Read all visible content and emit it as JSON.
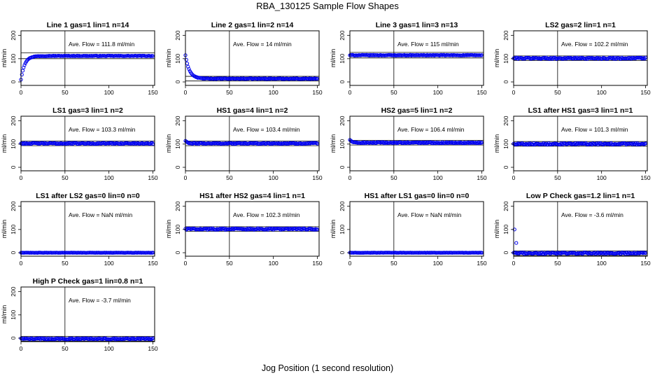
{
  "figure": {
    "title": "RBA_130125  Sample Flow Shapes",
    "xlabel": "Jog Position (1 second resolution)"
  },
  "colors": {
    "points": "#0000ee",
    "axis": "#000000"
  },
  "chart_data": [
    {
      "type": "scatter",
      "title": "Line 1 gas=1 lin=1 n=14",
      "flow_text": "Ave. Flow =  111.8  ml/min",
      "shape": "rise",
      "level": 112,
      "start": 10,
      "noise": 1.2,
      "hlines": [
        100,
        125
      ],
      "ylabel": "ml/min",
      "xticks": [
        0,
        50,
        100,
        150
      ],
      "yticks": [
        0,
        100,
        200
      ],
      "xlim": [
        0,
        152
      ],
      "ylim": [
        -15,
        220
      ]
    },
    {
      "type": "scatter",
      "title": "Line 2 gas=1 lin=2 n=14",
      "flow_text": "Ave. Flow =  14  ml/min",
      "shape": "decay",
      "level": 14,
      "start": 115,
      "noise": 1.5,
      "hlines": [
        4,
        24
      ],
      "ylabel": "ml/min",
      "xticks": [
        0,
        50,
        100,
        150
      ],
      "yticks": [
        0,
        100,
        200
      ],
      "xlim": [
        0,
        152
      ],
      "ylim": [
        -15,
        220
      ]
    },
    {
      "type": "scatter",
      "title": "Line 3 gas=1 lin=3 n=13",
      "flow_text": "Ave. Flow =  115  ml/min",
      "shape": "flat",
      "level": 115,
      "noise": 1.5,
      "hlines": [
        103,
        127
      ],
      "ylabel": "ml/min",
      "xticks": [
        0,
        50,
        100,
        150
      ],
      "yticks": [
        0,
        100,
        200
      ],
      "xlim": [
        0,
        152
      ],
      "ylim": [
        -15,
        220
      ]
    },
    {
      "type": "scatter",
      "title": "LS2 gas=2 lin=1 n=1",
      "flow_text": "Ave. Flow =  102.2  ml/min",
      "shape": "flat",
      "level": 102,
      "noise": 3,
      "hlines": [
        92,
        112
      ],
      "ylabel": "ml/min",
      "xticks": [
        0,
        50,
        100,
        150
      ],
      "yticks": [
        0,
        100,
        200
      ],
      "xlim": [
        0,
        152
      ],
      "ylim": [
        -15,
        220
      ]
    },
    {
      "type": "scatter",
      "title": "LS1 gas=3 lin=1 n=2",
      "flow_text": "Ave. Flow =  103.3  ml/min",
      "shape": "flat",
      "level": 103,
      "noise": 2.5,
      "hlines": [
        93,
        113
      ],
      "ylabel": "ml/min",
      "xticks": [
        0,
        50,
        100,
        150
      ],
      "yticks": [
        0,
        100,
        200
      ],
      "xlim": [
        0,
        152
      ],
      "ylim": [
        -15,
        220
      ]
    },
    {
      "type": "scatter",
      "title": "HS1 gas=4 lin=1 n=2",
      "flow_text": "Ave. Flow =  103.4  ml/min",
      "shape": "flatHigh",
      "level": 103,
      "start": 114,
      "noise": 2.5,
      "hlines": [
        93,
        113
      ],
      "ylabel": "ml/min",
      "xticks": [
        0,
        50,
        100,
        150
      ],
      "yticks": [
        0,
        100,
        200
      ],
      "xlim": [
        0,
        152
      ],
      "ylim": [
        -15,
        220
      ]
    },
    {
      "type": "scatter",
      "title": "HS2 gas=5 lin=1 n=2",
      "flow_text": "Ave. Flow =  106.4  ml/min",
      "shape": "flatHigh",
      "level": 106,
      "start": 118,
      "noise": 2.5,
      "hlines": [
        96,
        116
      ],
      "ylabel": "ml/min",
      "xticks": [
        0,
        50,
        100,
        150
      ],
      "yticks": [
        0,
        100,
        200
      ],
      "xlim": [
        0,
        152
      ],
      "ylim": [
        -15,
        220
      ]
    },
    {
      "type": "scatter",
      "title": "LS1 after HS1 gas=3 lin=1 n=1",
      "flow_text": "Ave. Flow =  101.3  ml/min",
      "shape": "flat",
      "level": 101,
      "noise": 3,
      "hlines": [
        91,
        111
      ],
      "ylabel": "ml/min",
      "xticks": [
        0,
        50,
        100,
        150
      ],
      "yticks": [
        0,
        100,
        200
      ],
      "xlim": [
        0,
        152
      ],
      "ylim": [
        -15,
        220
      ]
    },
    {
      "type": "scatter",
      "title": "LS1 after LS2 gas=0 lin=0 n=0",
      "flow_text": "Ave. Flow =  NaN  ml/min",
      "shape": "flat",
      "level": 0,
      "noise": 0.6,
      "hlines": [
        -5,
        5
      ],
      "ylabel": "ml/min",
      "xticks": [
        0,
        50,
        100,
        150
      ],
      "yticks": [
        0,
        100,
        200
      ],
      "xlim": [
        0,
        152
      ],
      "ylim": [
        -15,
        220
      ]
    },
    {
      "type": "scatter",
      "title": "HS1 after HS2 gas=4 lin=1 n=1",
      "flow_text": "Ave. Flow =  102.3  ml/min",
      "shape": "flat",
      "level": 102,
      "noise": 3,
      "hlines": [
        92,
        112
      ],
      "ylabel": "ml/min",
      "xticks": [
        0,
        50,
        100,
        150
      ],
      "yticks": [
        0,
        100,
        200
      ],
      "xlim": [
        0,
        152
      ],
      "ylim": [
        -15,
        220
      ]
    },
    {
      "type": "scatter",
      "title": "HS1 after LS1 gas=0 lin=0 n=0",
      "flow_text": "Ave. Flow =  NaN  ml/min",
      "shape": "flat",
      "level": 0,
      "noise": 0.6,
      "hlines": [
        -5,
        5
      ],
      "ylabel": "ml/min",
      "xticks": [
        0,
        50,
        100,
        150
      ],
      "yticks": [
        0,
        100,
        200
      ],
      "xlim": [
        0,
        152
      ],
      "ylim": [
        -15,
        220
      ]
    },
    {
      "type": "scatter",
      "title": "Low P Check gas=1.2 lin=1 n=1",
      "flow_text": "Ave. Flow =  -3.6  ml/min",
      "shape": "lowp",
      "level": -2,
      "noise": 3,
      "outliers": [
        [
          1,
          100
        ],
        [
          3,
          42
        ]
      ],
      "hlines": [
        -12,
        8
      ],
      "ylabel": "ml/min",
      "xticks": [
        0,
        50,
        100,
        150
      ],
      "yticks": [
        0,
        100,
        200
      ],
      "xlim": [
        0,
        152
      ],
      "ylim": [
        -15,
        220
      ]
    },
    {
      "type": "scatter",
      "title": "High P Check gas=1 lin=0.8 n=1",
      "flow_text": "Ave. Flow =  -3.7  ml/min",
      "shape": "flat",
      "level": -3,
      "noise": 2.5,
      "hlines": [
        -13,
        7
      ],
      "ylabel": "ml/min",
      "xticks": [
        0,
        50,
        100,
        150
      ],
      "yticks": [
        0,
        100,
        200
      ],
      "xlim": [
        0,
        152
      ],
      "ylim": [
        -15,
        220
      ]
    }
  ]
}
